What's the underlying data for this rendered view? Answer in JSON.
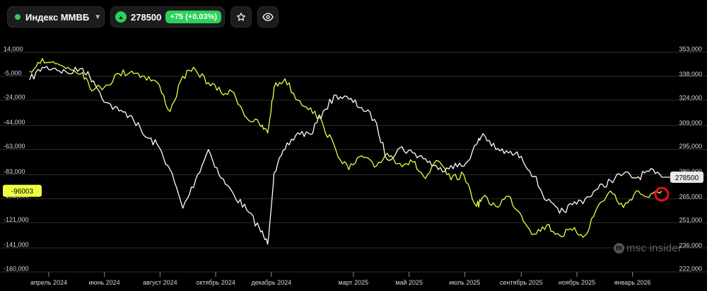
{
  "toolbar": {
    "instrument_name": "Индекс ММВБ",
    "chevron_icon": "chevron-down-icon",
    "price": "278500",
    "change": "+75 (+0.03%)",
    "up_icon": "triangle-up-icon",
    "star_icon": "star-icon",
    "eye_icon": "eye-icon",
    "accent_color": "#2bd15b"
  },
  "watermark": "msc insider",
  "chart_data": {
    "type": "line",
    "left_axis": {
      "ticks": [
        "14,000",
        "-5,000",
        "-24,000",
        "-44,000",
        "-63,000",
        "-83,000",
        "-102,000",
        "-121,000",
        "-141,000",
        "-160,000"
      ],
      "range": [
        -160000,
        14000
      ],
      "current_label": "-96003",
      "current_label_color": "#eeff41"
    },
    "right_axis": {
      "ticks": [
        "353,000",
        "338,000",
        "324,000",
        "309,000",
        "295,000",
        "280,000",
        "265,000",
        "251,000",
        "236,000",
        "222,000"
      ],
      "range": [
        222000,
        353000
      ],
      "current_label": "278500",
      "current_label_color": "#ffffff"
    },
    "x_ticks": [
      "апрель 2024",
      "июнь 2024",
      "август 2024",
      "октябрь 2024",
      "декабрь 2024",
      "март 2025",
      "май 2025",
      "июль 2025",
      "сентябрь 2025",
      "ноябрь 2025",
      "январь 2026"
    ],
    "x_range": [
      "2024-03-08",
      "2026-02-09"
    ],
    "grid": true,
    "series": [
      {
        "axis": "right",
        "color": "#ffffff",
        "points": [
          [
            "2024-03-11",
            336500
          ],
          [
            "2024-03-25",
            344000
          ],
          [
            "2024-04-08",
            343500
          ],
          [
            "2024-04-22",
            340500
          ],
          [
            "2024-05-08",
            343500
          ],
          [
            "2024-05-20",
            336000
          ],
          [
            "2024-06-03",
            323000
          ],
          [
            "2024-06-17",
            318000
          ],
          [
            "2024-07-01",
            315000
          ],
          [
            "2024-07-15",
            303000
          ],
          [
            "2024-07-29",
            298000
          ],
          [
            "2024-08-12",
            283000
          ],
          [
            "2024-08-26",
            260000
          ],
          [
            "2024-09-09",
            277000
          ],
          [
            "2024-09-23",
            295000
          ],
          [
            "2024-10-07",
            278000
          ],
          [
            "2024-10-21",
            268000
          ],
          [
            "2024-11-04",
            259000
          ],
          [
            "2024-11-18",
            248000
          ],
          [
            "2024-11-27",
            238500
          ],
          [
            "2024-12-04",
            281000
          ],
          [
            "2024-12-16",
            295000
          ],
          [
            "2024-12-30",
            305000
          ],
          [
            "2025-01-13",
            304000
          ],
          [
            "2025-01-27",
            318000
          ],
          [
            "2025-02-10",
            327500
          ],
          [
            "2025-02-24",
            325000
          ],
          [
            "2025-03-10",
            320000
          ],
          [
            "2025-03-24",
            313000
          ],
          [
            "2025-04-07",
            289000
          ],
          [
            "2025-04-21",
            296000
          ],
          [
            "2025-05-05",
            293000
          ],
          [
            "2025-05-19",
            289500
          ],
          [
            "2025-06-02",
            283000
          ],
          [
            "2025-06-16",
            285500
          ],
          [
            "2025-06-30",
            285000
          ],
          [
            "2025-07-14",
            298000
          ],
          [
            "2025-07-21",
            304500
          ],
          [
            "2025-08-04",
            295000
          ],
          [
            "2025-08-18",
            293000
          ],
          [
            "2025-09-01",
            291000
          ],
          [
            "2025-09-15",
            279000
          ],
          [
            "2025-09-29",
            264500
          ],
          [
            "2025-10-13",
            257000
          ],
          [
            "2025-10-27",
            262000
          ],
          [
            "2025-11-10",
            265500
          ],
          [
            "2025-11-24",
            271500
          ],
          [
            "2025-12-08",
            276500
          ],
          [
            "2025-12-22",
            280500
          ],
          [
            "2026-01-05",
            278000
          ],
          [
            "2026-01-19",
            282000
          ],
          [
            "2026-02-02",
            278500
          ]
        ]
      },
      {
        "axis": "left",
        "color": "#eeff41",
        "points": [
          [
            "2024-03-11",
            -1000
          ],
          [
            "2024-03-25",
            9000
          ],
          [
            "2024-04-08",
            5000
          ],
          [
            "2024-04-22",
            2000
          ],
          [
            "2024-05-08",
            -2000
          ],
          [
            "2024-05-20",
            -16000
          ],
          [
            "2024-06-03",
            -12000
          ],
          [
            "2024-06-17",
            -3000
          ],
          [
            "2024-07-01",
            -1000
          ],
          [
            "2024-07-15",
            -5000
          ],
          [
            "2024-07-29",
            -10000
          ],
          [
            "2024-08-12",
            -33000
          ],
          [
            "2024-08-26",
            -5000
          ],
          [
            "2024-09-09",
            0
          ],
          [
            "2024-09-23",
            -10000
          ],
          [
            "2024-10-07",
            -18000
          ],
          [
            "2024-10-21",
            -18000
          ],
          [
            "2024-11-04",
            -38000
          ],
          [
            "2024-11-18",
            -43000
          ],
          [
            "2024-11-27",
            -50000
          ],
          [
            "2024-12-04",
            -14000
          ],
          [
            "2024-12-16",
            -7000
          ],
          [
            "2024-12-30",
            -24000
          ],
          [
            "2025-01-13",
            -30000
          ],
          [
            "2025-01-27",
            -44000
          ],
          [
            "2025-02-10",
            -64000
          ],
          [
            "2025-02-24",
            -79000
          ],
          [
            "2025-03-10",
            -68000
          ],
          [
            "2025-03-24",
            -77000
          ],
          [
            "2025-04-07",
            -66000
          ],
          [
            "2025-04-21",
            -74000
          ],
          [
            "2025-05-05",
            -73000
          ],
          [
            "2025-05-19",
            -86000
          ],
          [
            "2025-06-02",
            -72000
          ],
          [
            "2025-06-16",
            -87000
          ],
          [
            "2025-06-30",
            -83000
          ],
          [
            "2025-07-14",
            -108000
          ],
          [
            "2025-07-21",
            -101000
          ],
          [
            "2025-08-04",
            -108000
          ],
          [
            "2025-08-18",
            -100000
          ],
          [
            "2025-09-01",
            -115000
          ],
          [
            "2025-09-15",
            -130000
          ],
          [
            "2025-09-29",
            -123000
          ],
          [
            "2025-10-13",
            -131000
          ],
          [
            "2025-10-27",
            -127000
          ],
          [
            "2025-11-10",
            -131000
          ],
          [
            "2025-11-24",
            -108000
          ],
          [
            "2025-12-08",
            -96000
          ],
          [
            "2025-12-22",
            -109000
          ],
          [
            "2026-01-05",
            -96000
          ],
          [
            "2026-01-19",
            -101000
          ],
          [
            "2026-02-02",
            -96003
          ]
        ]
      }
    ]
  }
}
